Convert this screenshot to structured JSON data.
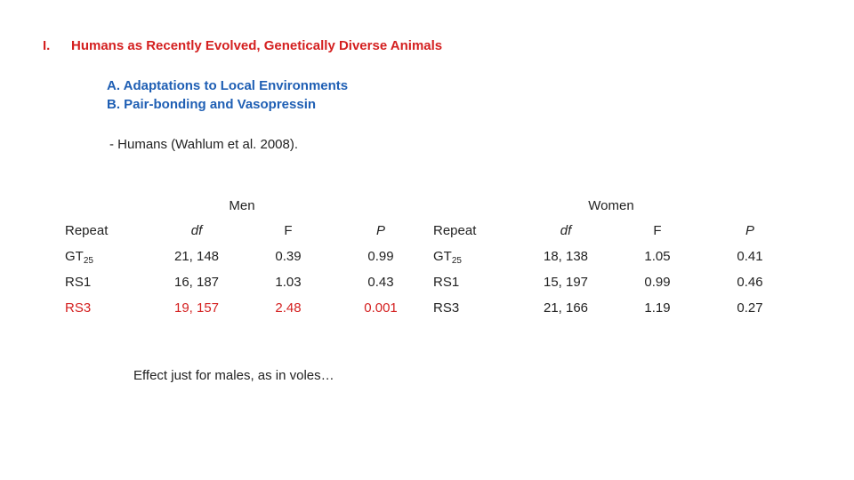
{
  "heading": {
    "numeral": "I.",
    "title": "Humans as Recently Evolved, Genetically Diverse Animals"
  },
  "subitems": [
    "A. Adaptations to Local Environments",
    "B. Pair-bonding and Vasopressin"
  ],
  "note": "- Humans (Wahlum et al. 2008).",
  "table": {
    "groups": [
      "Men",
      "Women"
    ],
    "header": [
      "Repeat",
      "df",
      "F",
      "P",
      "Repeat",
      "df",
      "F",
      "P"
    ],
    "rows": [
      [
        {
          "base": "GT",
          "sub": "25"
        },
        "21, 148",
        "0.39",
        "0.99",
        {
          "base": "GT",
          "sub": "25"
        },
        "18, 138",
        "1.05",
        "0.41"
      ],
      [
        "RS1",
        "16, 187",
        "1.03",
        "0.43",
        "RS1",
        "15, 197",
        "0.99",
        "0.46"
      ],
      [
        "RS3",
        "19, 157",
        "2.48",
        "0.001",
        "RS3",
        "21, 166",
        "1.19",
        "0.27"
      ]
    ]
  },
  "footnote": "Effect just for males, as in voles…"
}
